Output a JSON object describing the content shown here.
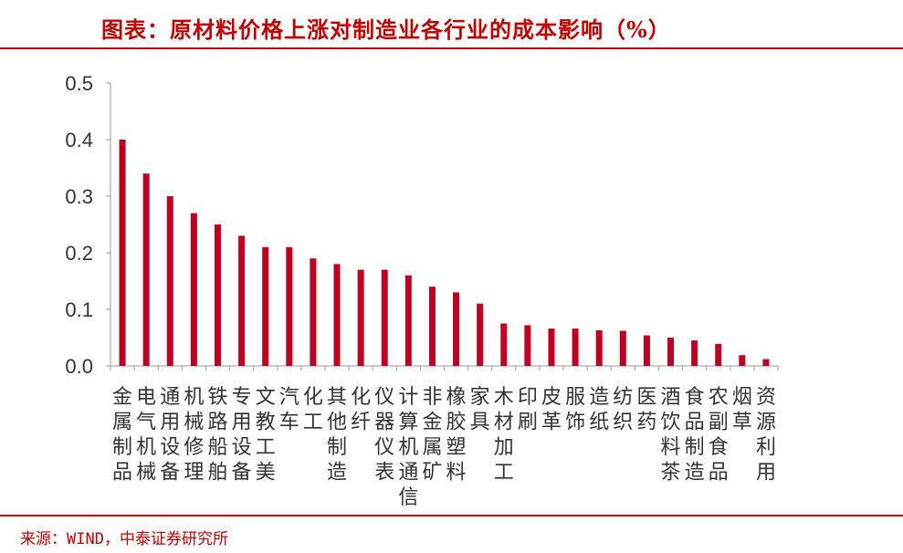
{
  "header": {
    "title": "图表：原材料价格上涨对制造业各行业的成本影响（%）"
  },
  "footer": {
    "source": "来源：WIND，中泰证券研究所"
  },
  "colors": {
    "bar": "#c00020",
    "accent": "#c00000",
    "axis": "#999999"
  },
  "chart_data": {
    "type": "bar",
    "title": "图表：原材料价格上涨对制造业各行业的成本影响（%）",
    "xlabel": "",
    "ylabel": "",
    "ylim": [
      0,
      0.5
    ],
    "yticks": [
      "0.0",
      "0.1",
      "0.2",
      "0.3",
      "0.4",
      "0.5"
    ],
    "grid": false,
    "legend": "none",
    "categories": [
      "金属制品",
      "电气机械",
      "通用设备",
      "机械修理",
      "铁路船舶",
      "专用设备",
      "文教工美",
      "汽车",
      "化工",
      "其他制造",
      "化纤",
      "仪器仪表",
      "计算机通信",
      "非金属矿",
      "橡胶塑料",
      "家具",
      "木材加工",
      "印刷",
      "皮革",
      "服饰",
      "造纸",
      "纺织",
      "医药",
      "酒饮料茶",
      "食品制造",
      "农副食品",
      "烟草",
      "资源利用"
    ],
    "values": [
      0.4,
      0.34,
      0.3,
      0.27,
      0.25,
      0.23,
      0.21,
      0.21,
      0.19,
      0.18,
      0.17,
      0.17,
      0.16,
      0.14,
      0.13,
      0.11,
      0.075,
      0.072,
      0.066,
      0.066,
      0.063,
      0.062,
      0.054,
      0.05,
      0.045,
      0.039,
      0.019,
      0.012
    ]
  }
}
